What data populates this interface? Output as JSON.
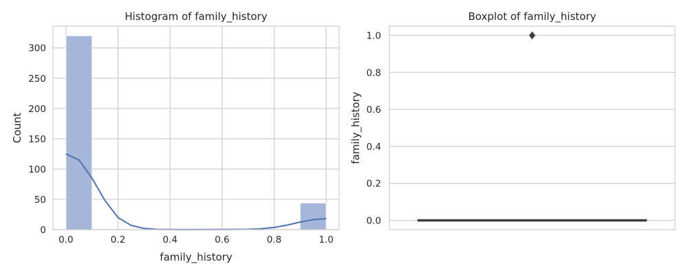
{
  "chart_data": [
    {
      "type": "bar",
      "title": "Histogram of family_history",
      "xlabel": "family_history",
      "ylabel": "Count",
      "xlim": [
        -0.05,
        1.05
      ],
      "ylim": [
        0,
        336
      ],
      "xticks": [
        0.0,
        0.2,
        0.4,
        0.6,
        0.8,
        1.0
      ],
      "xtick_labels": [
        "0.0",
        "0.2",
        "0.4",
        "0.6",
        "0.8",
        "1.0"
      ],
      "yticks": [
        0,
        50,
        100,
        150,
        200,
        250,
        300
      ],
      "ytick_labels": [
        "0",
        "50",
        "100",
        "150",
        "200",
        "250",
        "300"
      ],
      "grid": true,
      "bars": [
        {
          "x0": 0.0,
          "x1": 0.1,
          "value": 320
        },
        {
          "x0": 0.9,
          "x1": 1.0,
          "value": 44
        }
      ],
      "kde": {
        "x": [
          0.0,
          0.05,
          0.1,
          0.15,
          0.2,
          0.25,
          0.3,
          0.35,
          0.4,
          0.5,
          0.6,
          0.7,
          0.75,
          0.8,
          0.85,
          0.9,
          0.95,
          1.0
        ],
        "y": [
          125,
          115,
          85,
          48,
          20,
          7,
          2,
          0.5,
          0.2,
          0.1,
          0.2,
          0.6,
          1.5,
          3.5,
          7.5,
          12.5,
          16.5,
          18
        ]
      },
      "colors": {
        "bar": "#a4b7d9",
        "line": "#4c72b0"
      }
    },
    {
      "type": "box",
      "title": "Boxplot of family_history",
      "ylabel": "family_history",
      "ylim": [
        -0.05,
        1.05
      ],
      "yticks": [
        0.0,
        0.2,
        0.4,
        0.6,
        0.8,
        1.0
      ],
      "ytick_labels": [
        "0.0",
        "0.2",
        "0.4",
        "0.6",
        "0.8",
        "1.0"
      ],
      "grid": true,
      "box": {
        "q1": 0.0,
        "median": 0.0,
        "q3": 0.0,
        "whisker_low": 0.0,
        "whisker_high": 0.0
      },
      "outliers": [
        1.0
      ],
      "colors": {
        "box": "#4c72b0",
        "median": "#3d3d3d",
        "outlier": "#3d3d3d"
      }
    }
  ]
}
